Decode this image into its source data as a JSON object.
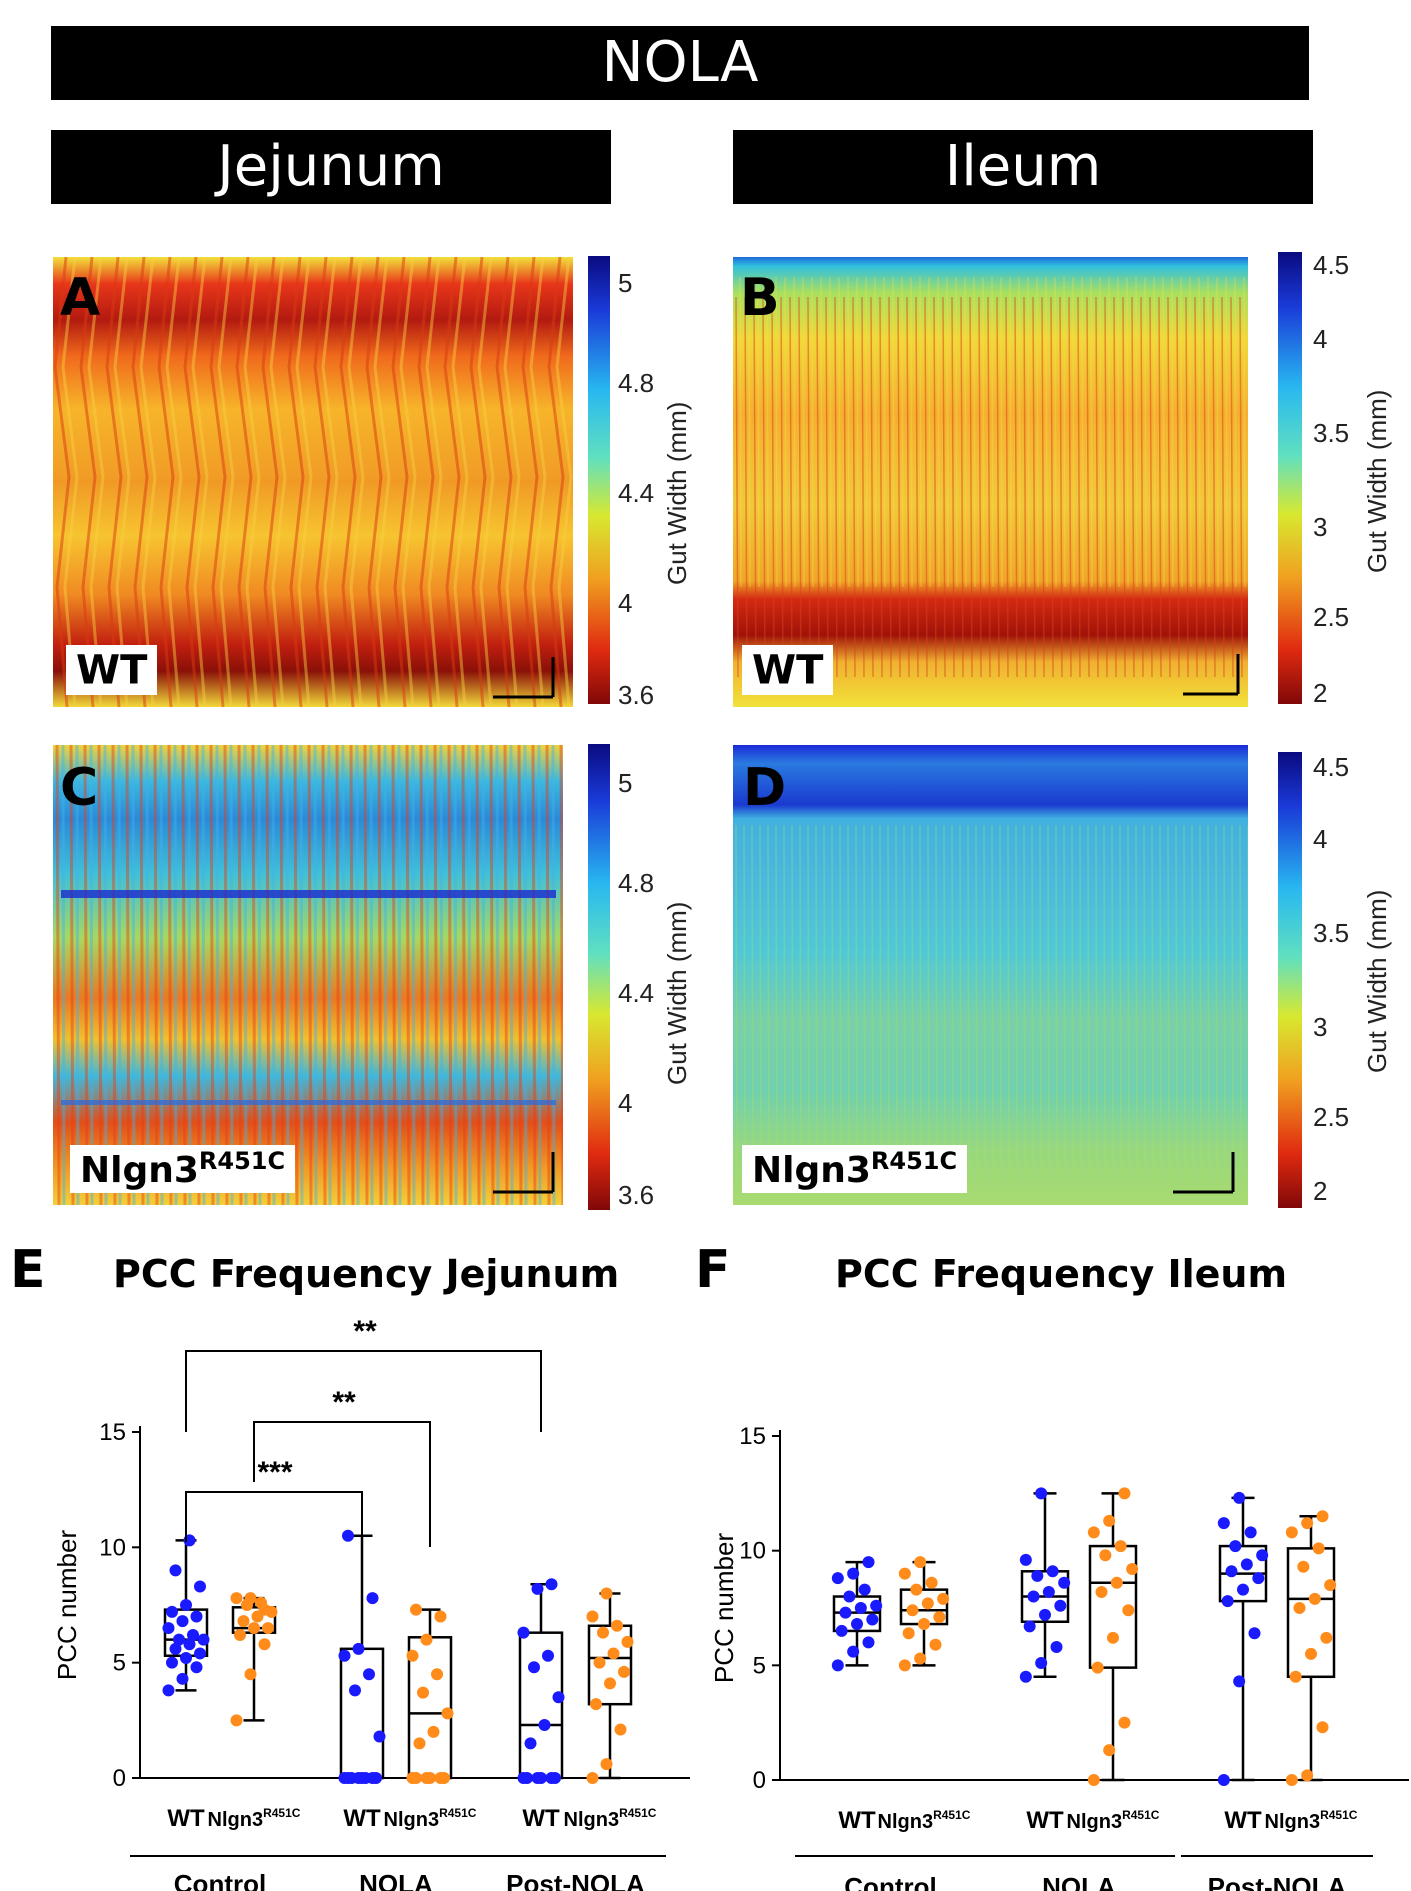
{
  "header": {
    "title": "NOLA",
    "left": "Jejunum",
    "right": "Ileum"
  },
  "heatmaps": {
    "A": {
      "letter": "A",
      "genotype": "WT",
      "sup": ""
    },
    "B": {
      "letter": "B",
      "genotype": "WT",
      "sup": ""
    },
    "C": {
      "letter": "C",
      "genotype": "Nlgn3",
      "sup": "R451C"
    },
    "D": {
      "letter": "D",
      "genotype": "Nlgn3",
      "sup": "R451C"
    }
  },
  "colorbars": {
    "jejunum": {
      "label": "Gut Width (mm)",
      "ticks": [
        "5",
        "4.8",
        "4.4",
        "4",
        "3.6"
      ]
    },
    "ileum": {
      "label": "Gut Width (mm)",
      "ticks": [
        "4.5",
        "4",
        "3.5",
        "3",
        "2.5",
        "2"
      ]
    }
  },
  "colors": {
    "wt": "#1a1aff",
    "mutant": "#ff8c1a"
  },
  "chart_data": [
    {
      "panel": "E",
      "type": "box",
      "title": "PCC Frequency Jejunum",
      "ylabel": "PCC number",
      "ylim": [
        0,
        15
      ],
      "yticks": [
        "0",
        "5",
        "10",
        "15"
      ],
      "groups": [
        "Control",
        "NOLA",
        "Post-NOLA"
      ],
      "genotypes": [
        {
          "name": "WT",
          "sup": ""
        },
        {
          "name": "Nlgn3",
          "sup": "R451C"
        }
      ],
      "boxes": [
        {
          "group": "Control",
          "genotype": "WT",
          "color": "#1a1aff",
          "min": 3.8,
          "q1": 5.3,
          "median": 6.0,
          "q3": 7.3,
          "max": 10.3,
          "points": [
            3.8,
            4.3,
            4.8,
            5.0,
            5.2,
            5.4,
            5.6,
            5.8,
            6.0,
            6.0,
            6.2,
            6.5,
            6.8,
            7.0,
            7.2,
            7.5,
            8.3,
            9.0,
            10.3
          ]
        },
        {
          "group": "Control",
          "genotype": "Nlgn3",
          "color": "#ff8c1a",
          "min": 2.5,
          "q1": 6.3,
          "median": 6.5,
          "q3": 7.4,
          "max": 7.8,
          "points": [
            2.5,
            4.5,
            5.8,
            6.2,
            6.5,
            6.5,
            6.8,
            7.0,
            7.2,
            7.5,
            7.6,
            7.8,
            7.8,
            7.3
          ]
        },
        {
          "group": "NOLA",
          "genotype": "WT",
          "color": "#1a1aff",
          "min": 0,
          "q1": 0,
          "median": 0,
          "q3": 5.6,
          "max": 10.5,
          "points": [
            0,
            0,
            0,
            0,
            0,
            0,
            0,
            0,
            1.8,
            3.8,
            4.5,
            5.3,
            5.6,
            7.8,
            10.5
          ]
        },
        {
          "group": "NOLA",
          "genotype": "Nlgn3",
          "color": "#ff8c1a",
          "min": 0,
          "q1": 0,
          "median": 2.8,
          "q3": 6.1,
          "max": 7.3,
          "points": [
            0,
            0,
            0,
            0,
            0,
            0,
            1.5,
            2.0,
            2.8,
            3.7,
            4.5,
            5.3,
            6.0,
            7.0,
            7.3
          ]
        },
        {
          "group": "Post-NOLA",
          "genotype": "WT",
          "color": "#1a1aff",
          "min": 0,
          "q1": 0,
          "median": 2.3,
          "q3": 6.3,
          "max": 8.4,
          "points": [
            0,
            0,
            0,
            0,
            0,
            0,
            1.5,
            2.3,
            3.5,
            4.8,
            5.3,
            6.3,
            8.2,
            8.4
          ]
        },
        {
          "group": "Post-NOLA",
          "genotype": "Nlgn3",
          "color": "#ff8c1a",
          "min": 0,
          "q1": 3.2,
          "median": 5.2,
          "q3": 6.6,
          "max": 8.0,
          "points": [
            0,
            0.6,
            2.1,
            3.2,
            4.1,
            4.6,
            5.0,
            5.4,
            5.9,
            6.3,
            6.6,
            7.0,
            8.0
          ]
        }
      ],
      "significance": [
        {
          "from": "Control WT",
          "to": "Post-NOLA WT",
          "label": "**"
        },
        {
          "from": "Control Nlgn3",
          "to": "NOLA Nlgn3",
          "label": "**"
        },
        {
          "from": "Control WT",
          "to": "NOLA WT",
          "label": "***"
        }
      ]
    },
    {
      "panel": "F",
      "type": "box",
      "title": "PCC Frequency Ileum",
      "ylabel": "PCC number",
      "ylim": [
        0,
        15
      ],
      "yticks": [
        "0",
        "5",
        "10",
        "15"
      ],
      "groups": [
        "Control",
        "NOLA",
        "Post-NOLA"
      ],
      "genotypes": [
        {
          "name": "WT",
          "sup": ""
        },
        {
          "name": "Nlgn3",
          "sup": "R451C"
        }
      ],
      "boxes": [
        {
          "group": "Control",
          "genotype": "WT",
          "color": "#1a1aff",
          "min": 5.0,
          "q1": 6.5,
          "median": 7.3,
          "q3": 8.0,
          "max": 9.5,
          "points": [
            5.0,
            5.6,
            6.0,
            6.5,
            6.8,
            7.0,
            7.3,
            7.5,
            7.6,
            8.0,
            8.3,
            8.8,
            9.0,
            9.5
          ]
        },
        {
          "group": "Control",
          "genotype": "Nlgn3",
          "color": "#ff8c1a",
          "min": 5.0,
          "q1": 6.8,
          "median": 7.4,
          "q3": 8.3,
          "max": 9.5,
          "points": [
            5.0,
            5.3,
            5.9,
            6.4,
            6.8,
            7.1,
            7.4,
            7.7,
            7.9,
            8.3,
            8.6,
            9.0,
            9.5
          ]
        },
        {
          "group": "NOLA",
          "genotype": "WT",
          "color": "#1a1aff",
          "min": 4.5,
          "q1": 6.9,
          "median": 8.0,
          "q3": 9.1,
          "max": 12.5,
          "points": [
            4.5,
            5.1,
            5.8,
            6.7,
            7.2,
            7.6,
            8.0,
            8.2,
            8.6,
            8.9,
            9.1,
            9.6,
            12.5
          ]
        },
        {
          "group": "NOLA",
          "genotype": "Nlgn3",
          "color": "#ff8c1a",
          "min": 0,
          "q1": 4.9,
          "median": 8.6,
          "q3": 10.2,
          "max": 12.5,
          "points": [
            0,
            1.3,
            2.5,
            4.9,
            6.2,
            7.4,
            8.2,
            8.6,
            9.2,
            9.8,
            10.2,
            10.8,
            11.3,
            12.5
          ]
        },
        {
          "group": "Post-NOLA",
          "genotype": "WT",
          "color": "#1a1aff",
          "min": 0,
          "q1": 7.8,
          "median": 9.0,
          "q3": 10.2,
          "max": 12.3,
          "points": [
            0,
            4.3,
            6.4,
            7.8,
            8.3,
            8.8,
            9.1,
            9.4,
            9.8,
            10.2,
            10.8,
            11.2,
            12.3
          ]
        },
        {
          "group": "Post-NOLA",
          "genotype": "Nlgn3",
          "color": "#ff8c1a",
          "min": 0,
          "q1": 4.5,
          "median": 7.9,
          "q3": 10.1,
          "max": 11.5,
          "points": [
            0,
            0.2,
            2.3,
            4.5,
            5.5,
            6.2,
            7.5,
            7.9,
            8.5,
            9.3,
            10.1,
            10.8,
            11.2,
            11.5
          ]
        }
      ],
      "significance": []
    }
  ]
}
